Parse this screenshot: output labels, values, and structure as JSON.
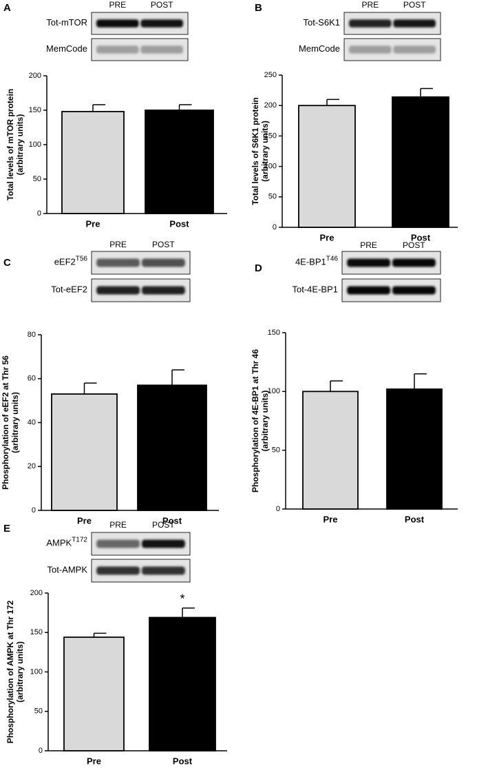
{
  "chart_data": [
    {
      "type": "bar",
      "panel": "A",
      "blot": {
        "columns": [
          "PRE",
          "POST"
        ],
        "rows": [
          {
            "label": "Tot-mTOR"
          },
          {
            "label": "MemCode"
          }
        ]
      },
      "y_label": [
        "Total levels of mTOR protein",
        "(arbitrary units)"
      ],
      "categories": [
        "Pre",
        "Post"
      ],
      "values": [
        148,
        150
      ],
      "errors": [
        10,
        8
      ],
      "colors": [
        "#d9d9d9",
        "#000000"
      ],
      "ylim": [
        0,
        200
      ],
      "yticks": [
        0,
        50,
        100,
        150,
        200
      ]
    },
    {
      "type": "bar",
      "panel": "B",
      "blot": {
        "columns": [
          "PRE",
          "POST"
        ],
        "rows": [
          {
            "label": "Tot-S6K1"
          },
          {
            "label": "MemCode"
          }
        ]
      },
      "y_label": [
        "Total levels of S6K1 protein",
        "(arbitrary units)"
      ],
      "categories": [
        "Pre",
        "Post"
      ],
      "values": [
        200,
        214
      ],
      "errors": [
        10,
        14
      ],
      "colors": [
        "#d9d9d9",
        "#000000"
      ],
      "ylim": [
        0,
        250
      ],
      "yticks": [
        0,
        50,
        100,
        150,
        200,
        250
      ]
    },
    {
      "type": "bar",
      "panel": "C",
      "blot": {
        "columns": [
          "PRE",
          "POST"
        ],
        "rows": [
          {
            "label": "eEF2",
            "superscript": "T56"
          },
          {
            "label": "Tot-eEF2"
          }
        ]
      },
      "y_label": [
        "Phosphorylation of eEF2 at Thr 56",
        "(arbitrary units)"
      ],
      "categories": [
        "Pre",
        "Post"
      ],
      "values": [
        53,
        57
      ],
      "errors": [
        5,
        7
      ],
      "colors": [
        "#d9d9d9",
        "#000000"
      ],
      "ylim": [
        0,
        80
      ],
      "yticks": [
        0,
        20,
        40,
        60,
        80
      ]
    },
    {
      "type": "bar",
      "panel": "D",
      "blot": {
        "columns": [
          "PRE",
          "POST"
        ],
        "rows": [
          {
            "label": "4E-BP1",
            "superscript": "T46"
          },
          {
            "label": "Tot-4E-BP1"
          }
        ]
      },
      "y_label": [
        "Phosphorylation of 4E-BP1 at Thr 46",
        "(arbitrary units)"
      ],
      "categories": [
        "Pre",
        "Post"
      ],
      "values": [
        100,
        102
      ],
      "errors": [
        9,
        13
      ],
      "colors": [
        "#d9d9d9",
        "#000000"
      ],
      "ylim": [
        0,
        150
      ],
      "yticks": [
        0,
        50,
        100,
        150
      ]
    },
    {
      "type": "bar",
      "panel": "E",
      "blot": {
        "columns": [
          "PRE",
          "POST"
        ],
        "rows": [
          {
            "label": "AMPK",
            "superscript": "T172"
          },
          {
            "label": "Tot-AMPK"
          }
        ]
      },
      "y_label": [
        "Phosphorylation of AMPK at Thr 172",
        "(arbitrary units)"
      ],
      "categories": [
        "Pre",
        "Post"
      ],
      "values": [
        144,
        169
      ],
      "errors": [
        5,
        12
      ],
      "colors": [
        "#d9d9d9",
        "#000000"
      ],
      "annotation": "*",
      "ylim": [
        0,
        200
      ],
      "yticks": [
        0,
        50,
        100,
        150,
        200
      ]
    }
  ]
}
